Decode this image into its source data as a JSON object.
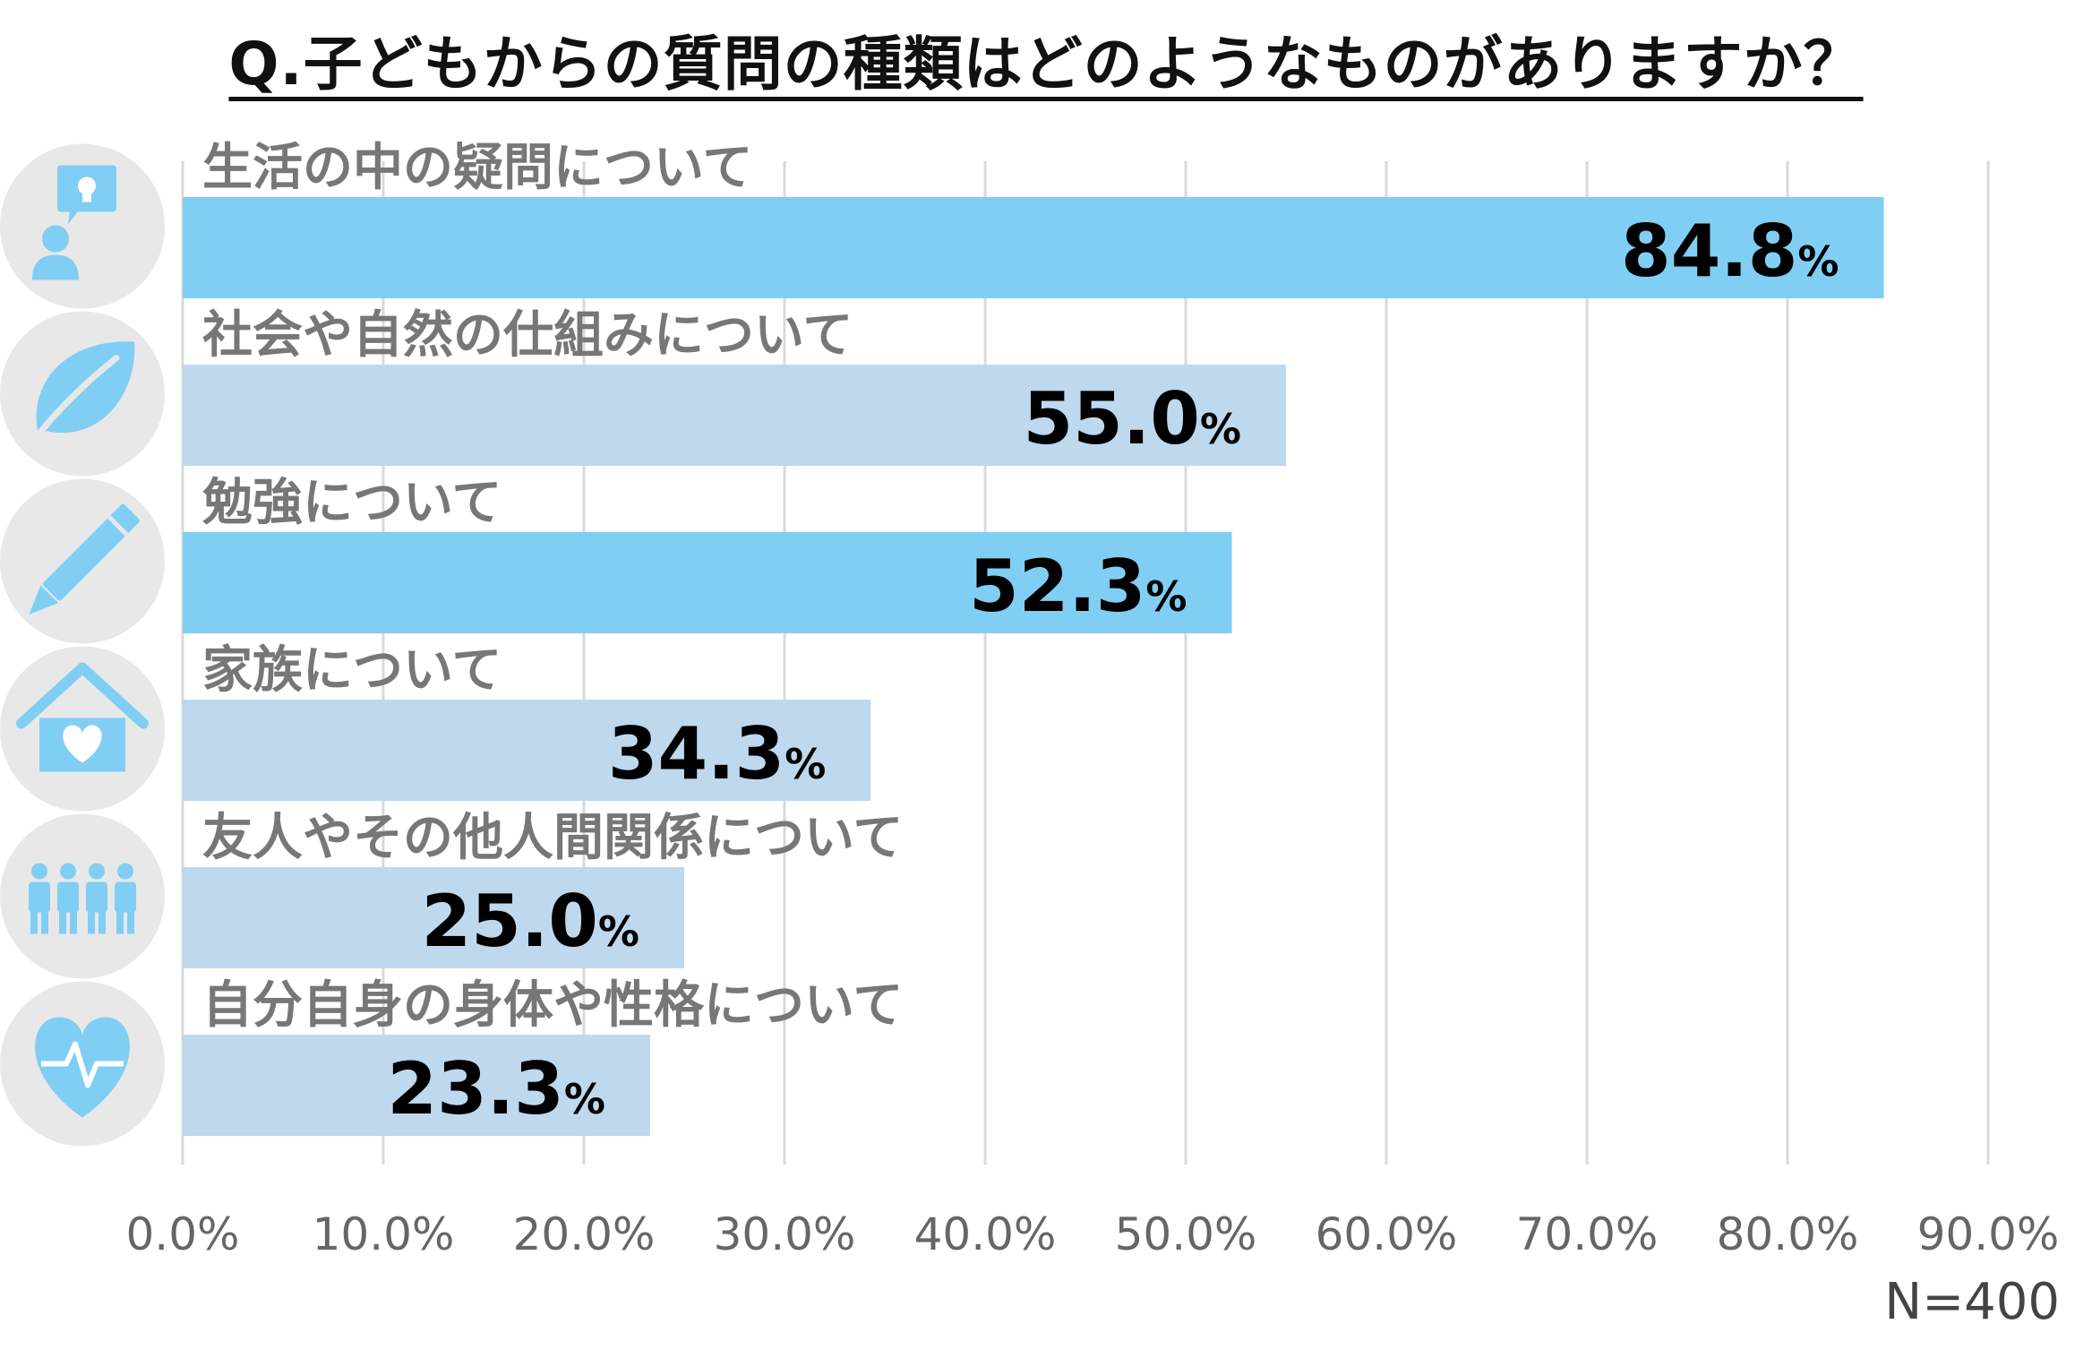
{
  "title": "Q.子どもからの質問の種類はどのようなものがありますか？",
  "sample_size": "N=400",
  "colors": {
    "highlight": "#80cef4",
    "muted": "#bed8ee",
    "icon_bg": "#e8e8e8",
    "icon": "#80cef4",
    "grid": "#d9d9d9"
  },
  "chart_data": {
    "type": "bar",
    "orientation": "horizontal",
    "title": "Q.子どもからの質問の種類はどのようなものがありますか？",
    "categories": [
      "生活の中の疑問について",
      "社会や自然の仕組みについて",
      "勉強について",
      "家族について",
      "友人やその他人間関係について",
      "自分自身の身体や性格について"
    ],
    "values": [
      84.8,
      55.0,
      52.3,
      34.3,
      25.0,
      23.3
    ],
    "value_labels": [
      "84.8",
      "55.0",
      "52.3",
      "34.3",
      "25.0",
      "23.3"
    ],
    "value_suffix": "%",
    "bar_colors": [
      "highlight",
      "muted",
      "highlight",
      "muted",
      "muted",
      "muted"
    ],
    "icons": [
      "person-idea-icon",
      "leaf-icon",
      "pencil-icon",
      "house-heart-icon",
      "people-icon",
      "heart-pulse-icon"
    ],
    "xlim": [
      0,
      90
    ],
    "xticks": [
      "0.0%",
      "10.0%",
      "20.0%",
      "30.0%",
      "40.0%",
      "50.0%",
      "60.0%",
      "70.0%",
      "80.0%",
      "90.0%"
    ],
    "grid": true,
    "legend": "none"
  }
}
